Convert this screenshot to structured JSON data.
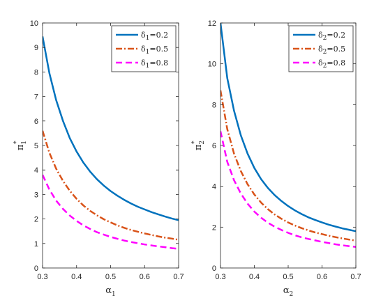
{
  "chart_data": [
    {
      "type": "line",
      "xlabel": "α",
      "xlabel_sub": "1",
      "ylabel": "π",
      "ylabel_sub": "1",
      "ylabel_sup": "*",
      "xlim": [
        0.3,
        0.7
      ],
      "ylim": [
        0,
        10
      ],
      "xticks": [
        "0.3",
        "0.4",
        "0.5",
        "0.6",
        "0.7"
      ],
      "yticks": [
        "0",
        "1",
        "2",
        "3",
        "4",
        "5",
        "6",
        "7",
        "8",
        "9",
        "10"
      ],
      "legend_position": "top-right",
      "x": [
        0.3,
        0.32,
        0.34,
        0.36,
        0.38,
        0.4,
        0.42,
        0.44,
        0.46,
        0.48,
        0.5,
        0.52,
        0.54,
        0.56,
        0.58,
        0.6,
        0.62,
        0.64,
        0.66,
        0.68,
        0.7
      ],
      "series": [
        {
          "name": "δ1=0.2",
          "legend_symbol": "δ",
          "legend_sub": "1",
          "legend_value": "=0.2",
          "color": "#0072BD",
          "style": "solid",
          "values": [
            9.45,
            7.95,
            6.85,
            6.0,
            5.3,
            4.75,
            4.3,
            3.93,
            3.62,
            3.36,
            3.14,
            2.95,
            2.78,
            2.63,
            2.5,
            2.39,
            2.28,
            2.19,
            2.1,
            2.02,
            1.95
          ]
        },
        {
          "name": "δ1=0.5",
          "legend_symbol": "δ",
          "legend_sub": "1",
          "legend_value": "=0.5",
          "color": "#D95319",
          "style": "dashdot",
          "values": [
            5.6,
            4.7,
            4.05,
            3.55,
            3.15,
            2.82,
            2.55,
            2.33,
            2.15,
            1.99,
            1.86,
            1.74,
            1.64,
            1.55,
            1.48,
            1.41,
            1.35,
            1.29,
            1.24,
            1.2,
            1.15
          ]
        },
        {
          "name": "δ1=0.8",
          "legend_symbol": "δ",
          "legend_sub": "1",
          "legend_value": "=0.8",
          "color": "#FF00FF",
          "style": "dashed",
          "values": [
            3.8,
            3.2,
            2.75,
            2.41,
            2.14,
            1.92,
            1.74,
            1.59,
            1.46,
            1.36,
            1.27,
            1.19,
            1.12,
            1.06,
            1.01,
            0.96,
            0.92,
            0.88,
            0.85,
            0.81,
            0.78
          ]
        }
      ]
    },
    {
      "type": "line",
      "xlabel": "α",
      "xlabel_sub": "2",
      "ylabel": "π",
      "ylabel_sub": "2",
      "ylabel_sup": "*",
      "xlim": [
        0.3,
        0.7
      ],
      "ylim": [
        0,
        12
      ],
      "xticks": [
        "0.3",
        "0.4",
        "0.5",
        "0.6",
        "0.7"
      ],
      "yticks": [
        "0",
        "2",
        "4",
        "6",
        "8",
        "10",
        "12"
      ],
      "legend_position": "top-right",
      "x": [
        0.3,
        0.32,
        0.34,
        0.36,
        0.38,
        0.4,
        0.42,
        0.44,
        0.46,
        0.48,
        0.5,
        0.52,
        0.54,
        0.56,
        0.58,
        0.6,
        0.62,
        0.64,
        0.66,
        0.68,
        0.7
      ],
      "series": [
        {
          "name": "δ2=0.2",
          "legend_symbol": "δ",
          "legend_sub": "2",
          "legend_value": "=0.2",
          "color": "#0072BD",
          "style": "solid",
          "values": [
            12.0,
            9.3,
            7.7,
            6.5,
            5.6,
            4.9,
            4.35,
            3.92,
            3.57,
            3.28,
            3.03,
            2.82,
            2.64,
            2.48,
            2.35,
            2.23,
            2.12,
            2.03,
            1.94,
            1.87,
            1.8
          ]
        },
        {
          "name": "δ2=0.5",
          "legend_symbol": "δ",
          "legend_sub": "2",
          "legend_value": "=0.5",
          "color": "#D95319",
          "style": "dashdot",
          "values": [
            8.7,
            6.8,
            5.6,
            4.75,
            4.1,
            3.6,
            3.2,
            2.88,
            2.62,
            2.41,
            2.23,
            2.08,
            1.95,
            1.84,
            1.74,
            1.66,
            1.58,
            1.51,
            1.45,
            1.39,
            1.34
          ]
        },
        {
          "name": "δ2=0.8",
          "legend_symbol": "δ",
          "legend_sub": "2",
          "legend_value": "=0.8",
          "color": "#FF00FF",
          "style": "dashed",
          "values": [
            6.7,
            5.2,
            4.3,
            3.65,
            3.15,
            2.76,
            2.46,
            2.22,
            2.02,
            1.86,
            1.72,
            1.6,
            1.5,
            1.42,
            1.35,
            1.28,
            1.22,
            1.16,
            1.11,
            1.07,
            1.03
          ]
        }
      ]
    }
  ]
}
